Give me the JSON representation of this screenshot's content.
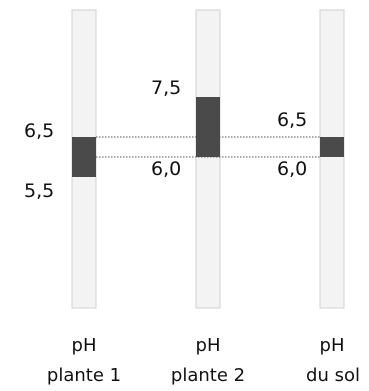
{
  "columns": [
    {
      "key": "plante1",
      "caption_line1": "pH",
      "caption_line2": "plante 1",
      "range": [
        5.5,
        6.5
      ],
      "labels": {
        "high": "6,5",
        "low": "5,5"
      }
    },
    {
      "key": "plante2",
      "caption_line1": "pH",
      "caption_line2": "plante 2",
      "range": [
        6.0,
        7.5
      ],
      "labels": {
        "high": "7,5",
        "low": "6,0"
      }
    },
    {
      "key": "sol",
      "caption_line1": "pH",
      "caption_line2": "du sol",
      "range": [
        6.0,
        6.5
      ],
      "labels": {
        "high": "6,5",
        "low": "6,0"
      }
    }
  ],
  "colors": {
    "track_fill": "#f3f3f3",
    "track_border": "#d2d2d2",
    "range_fill": "#4a4a4a",
    "dotted_line": "#555555"
  }
}
